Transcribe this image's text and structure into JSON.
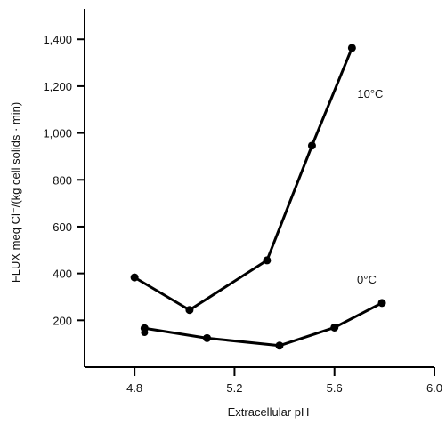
{
  "chart_data": {
    "type": "line",
    "title": "",
    "xlabel": "Extracellular pH",
    "ylabel": "FLUX meq Cl⁻/(kg cell solids · min)",
    "xlim": [
      4.6,
      6.0
    ],
    "ylim": [
      0,
      1530
    ],
    "x_ticks": [
      {
        "value": 4.8,
        "label": "4.8"
      },
      {
        "value": 5.2,
        "label": "5.2"
      },
      {
        "value": 5.6,
        "label": "5.6"
      },
      {
        "value": 6.0,
        "label": "6.0"
      }
    ],
    "y_ticks": [
      {
        "value": 200,
        "label": "200"
      },
      {
        "value": 400,
        "label": "400"
      },
      {
        "value": 600,
        "label": "600"
      },
      {
        "value": 800,
        "label": "800"
      },
      {
        "value": 1000,
        "label": "1,000"
      },
      {
        "value": 1200,
        "label": "1,200"
      },
      {
        "value": 1400,
        "label": "1,400"
      }
    ],
    "grid": false,
    "series": [
      {
        "name": "10°C",
        "x": [
          4.8,
          5.02,
          5.33,
          5.51,
          5.67
        ],
        "y": [
          383,
          244,
          456,
          946,
          1363
        ]
      },
      {
        "name": "0°C",
        "x": [
          4.84,
          5.09,
          5.38,
          5.6,
          5.79
        ],
        "y": [
          166,
          124,
          92,
          169,
          274
        ],
        "extra_points": [
          {
            "x": 4.84,
            "y": 148
          }
        ]
      }
    ],
    "series_label_positions": [
      "right of line end",
      "above line end"
    ]
  }
}
